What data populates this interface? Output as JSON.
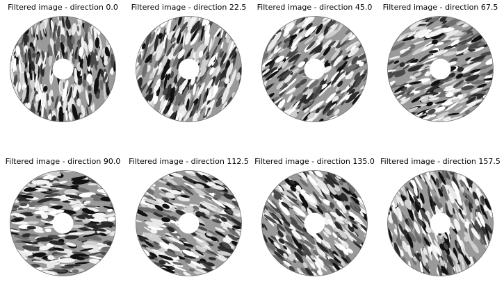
{
  "panels": [
    {
      "title": "Filtered image - direction 0.0",
      "angle": 0.0
    },
    {
      "title": "Filtered image - direction 22.5",
      "angle": 22.5
    },
    {
      "title": "Filtered image - direction 45.0",
      "angle": 45.0
    },
    {
      "title": "Filtered image - direction 67.5",
      "angle": 67.5
    },
    {
      "title": "Filtered image - direction 90.0",
      "angle": 90.0
    },
    {
      "title": "Filtered image - direction 112.5",
      "angle": 112.5
    },
    {
      "title": "Filtered image - direction 135.0",
      "angle": 135.0
    },
    {
      "title": "Filtered image - direction 157.5",
      "angle": 157.5
    }
  ]
}
